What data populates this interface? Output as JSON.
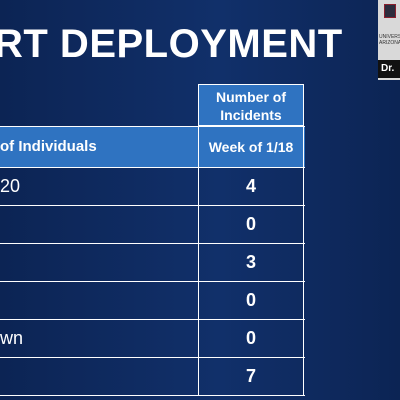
{
  "slide": {
    "title": "RT DEPLOYMENT",
    "table": {
      "header_top": "Number of Incidents",
      "header_left": "of Individuals",
      "header_right": "Week of 1/18",
      "rows": [
        {
          "label": "20",
          "value": "4"
        },
        {
          "label": "",
          "value": "0"
        },
        {
          "label": "",
          "value": "3"
        },
        {
          "label": "",
          "value": "0"
        },
        {
          "label": "wn",
          "value": "0"
        },
        {
          "label": "",
          "value": "7"
        }
      ]
    }
  },
  "webcam": {
    "logo_text": "UNIVERSITY\nARIZONA",
    "presenter_name": "Dr."
  },
  "colors": {
    "background": "#0d2859",
    "header_fill": "#2f73c1",
    "grid_lines": "#ffffff"
  }
}
